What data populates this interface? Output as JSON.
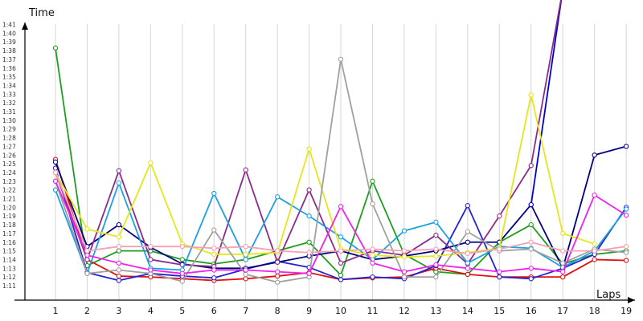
{
  "chart_data": {
    "type": "line",
    "ylabel": "Time",
    "xlabel": "Laps",
    "x": [
      1,
      2,
      3,
      4,
      5,
      6,
      7,
      8,
      9,
      10,
      11,
      12,
      13,
      14,
      15,
      16,
      17,
      18,
      19
    ],
    "ylim_seconds": [
      70,
      102
    ],
    "y_ticks": [
      "1:11",
      "1:12",
      "1:13",
      "1:14",
      "1:15",
      "1:16",
      "1:17",
      "1:18",
      "1:19",
      "1:20",
      "1:21",
      "1:22",
      "1:23",
      "1:24",
      "1:25",
      "1:26",
      "1:27",
      "1:28",
      "1:29",
      "1:30",
      "1:31",
      "1:32",
      "1:33",
      "1:34",
      "1:35",
      "1:36",
      "1:37",
      "1:38",
      "1:39",
      "1:40",
      "1:41"
    ],
    "grid": "vertical",
    "series": [
      {
        "color": "#1e9e1e",
        "values": [
          98.3,
          73.3,
          75.0,
          75.0,
          74.0,
          73.5,
          74.0,
          75.0,
          76.0,
          72.2,
          83.0,
          74.6,
          72.6,
          72.3,
          76.0,
          78.0,
          73.5,
          74.6,
          75.0
        ]
      },
      {
        "color": "#e01010",
        "values": [
          85.5,
          74.0,
          72.1,
          72.0,
          71.8,
          71.6,
          71.8,
          72.1,
          72.5,
          71.7,
          71.9,
          72.0,
          73.0,
          72.3,
          72.0,
          72.0,
          72.0,
          74.0,
          73.9
        ]
      },
      {
        "color": "#2323d0",
        "values": [
          84.5,
          72.5,
          71.6,
          72.4,
          72.1,
          71.9,
          72.9,
          73.8,
          73.1,
          71.7,
          72.0,
          71.8,
          73.3,
          80.2,
          72.0,
          71.8,
          73.0,
          74.6,
          80.0
        ]
      },
      {
        "color": "#000080",
        "values": [
          85.2,
          75.5,
          78.0,
          75.4,
          73.5,
          73.0,
          73.0,
          73.7,
          74.4,
          75.0,
          74.0,
          74.4,
          75.0,
          76.0,
          76.0,
          80.3,
          73.0,
          86.0,
          87.0
        ]
      },
      {
        "color": "#0000d0",
        "values": [
          null,
          null,
          null,
          null,
          null,
          null,
          null,
          null,
          null,
          null,
          null,
          null,
          null,
          null,
          null,
          80.3,
          105.0,
          null,
          null
        ]
      },
      {
        "color": "#8b2b8b",
        "values": [
          84.0,
          74.0,
          84.2,
          74.0,
          73.4,
          73.2,
          84.3,
          73.7,
          82.0,
          73.6,
          75.0,
          74.5,
          76.8,
          73.5,
          79.0,
          84.8,
          105.0,
          null,
          null
        ]
      },
      {
        "color": "#1ba1e2",
        "values": [
          82.0,
          72.4,
          82.8,
          73.0,
          72.8,
          81.6,
          74.0,
          81.2,
          79.0,
          76.6,
          74.0,
          77.3,
          78.3,
          73.6,
          75.5,
          75.3,
          73.1,
          75.0,
          79.8
        ]
      },
      {
        "color": "#e6e61a",
        "values": [
          84.0,
          77.5,
          76.6,
          85.1,
          75.8,
          74.6,
          74.6,
          74.8,
          86.7,
          75.2,
          74.5,
          74.3,
          74.4,
          74.8,
          75.3,
          92.9,
          77.0,
          75.8,
          null
        ]
      },
      {
        "color": "#a0a0a0",
        "values": [
          83.0,
          72.4,
          72.8,
          72.4,
          71.5,
          77.4,
          72.3,
          71.4,
          72.0,
          97.0,
          80.4,
          72.0,
          72.0,
          77.2,
          75.0,
          75.2,
          73.6,
          75.2,
          74.8
        ]
      },
      {
        "color": "#ee22ee",
        "values": [
          83.0,
          74.5,
          73.6,
          72.8,
          72.4,
          72.8,
          72.8,
          72.6,
          72.4,
          80.1,
          73.6,
          72.6,
          73.4,
          73.0,
          72.6,
          73.0,
          72.6,
          81.4,
          79.1
        ]
      },
      {
        "color": "#f4a0b4",
        "values": [
          84.0,
          75.0,
          75.5,
          75.5,
          75.5,
          75.3,
          75.5,
          75.0,
          74.8,
          75.0,
          75.2,
          75.0,
          75.2,
          74.7,
          75.2,
          76.0,
          75.0,
          75.0,
          75.5
        ]
      }
    ]
  }
}
